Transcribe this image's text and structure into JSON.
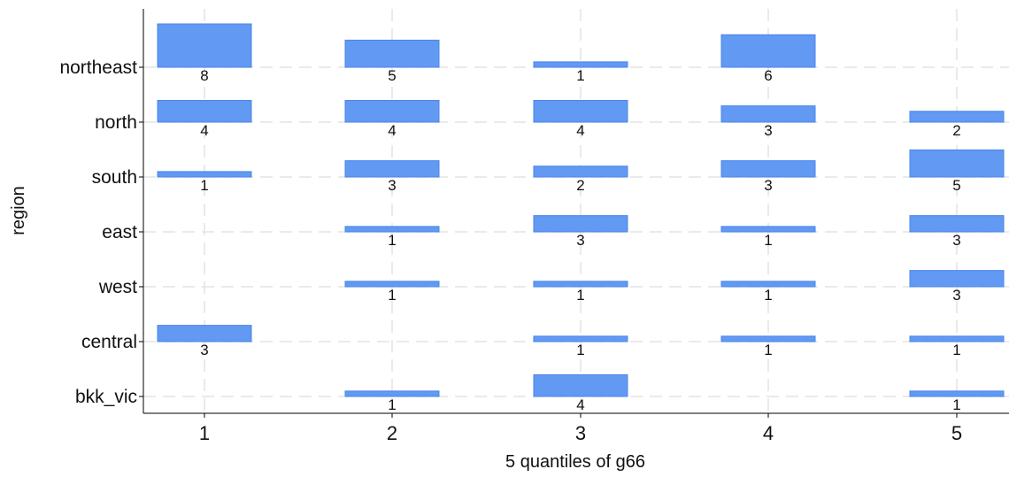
{
  "chart_data": {
    "type": "bar",
    "xlabel": "5 quantiles of g66",
    "ylabel": "region",
    "x_categories": [
      "1",
      "2",
      "3",
      "4",
      "5"
    ],
    "y_categories": [
      "northeast",
      "north",
      "south",
      "east",
      "west",
      "central",
      "bkk_vic"
    ],
    "grid": true,
    "bar_color": "#6199f3",
    "bar_edge_color": "#4a86e8",
    "max_count": 8,
    "cells": [
      {
        "region": "northeast",
        "quantile": "1",
        "count": 8
      },
      {
        "region": "northeast",
        "quantile": "2",
        "count": 5
      },
      {
        "region": "northeast",
        "quantile": "3",
        "count": 1
      },
      {
        "region": "northeast",
        "quantile": "4",
        "count": 6
      },
      {
        "region": "north",
        "quantile": "1",
        "count": 4
      },
      {
        "region": "north",
        "quantile": "2",
        "count": 4
      },
      {
        "region": "north",
        "quantile": "3",
        "count": 4
      },
      {
        "region": "north",
        "quantile": "4",
        "count": 3
      },
      {
        "region": "north",
        "quantile": "5",
        "count": 2
      },
      {
        "region": "south",
        "quantile": "1",
        "count": 1
      },
      {
        "region": "south",
        "quantile": "2",
        "count": 3
      },
      {
        "region": "south",
        "quantile": "3",
        "count": 2
      },
      {
        "region": "south",
        "quantile": "4",
        "count": 3
      },
      {
        "region": "south",
        "quantile": "5",
        "count": 5
      },
      {
        "region": "east",
        "quantile": "2",
        "count": 1
      },
      {
        "region": "east",
        "quantile": "3",
        "count": 3
      },
      {
        "region": "east",
        "quantile": "4",
        "count": 1
      },
      {
        "region": "east",
        "quantile": "5",
        "count": 3
      },
      {
        "region": "west",
        "quantile": "2",
        "count": 1
      },
      {
        "region": "west",
        "quantile": "3",
        "count": 1
      },
      {
        "region": "west",
        "quantile": "4",
        "count": 1
      },
      {
        "region": "west",
        "quantile": "5",
        "count": 3
      },
      {
        "region": "central",
        "quantile": "1",
        "count": 3
      },
      {
        "region": "central",
        "quantile": "3",
        "count": 1
      },
      {
        "region": "central",
        "quantile": "4",
        "count": 1
      },
      {
        "region": "central",
        "quantile": "5",
        "count": 1
      },
      {
        "region": "bkk_vic",
        "quantile": "2",
        "count": 1
      },
      {
        "region": "bkk_vic",
        "quantile": "3",
        "count": 4
      },
      {
        "region": "bkk_vic",
        "quantile": "5",
        "count": 1
      }
    ]
  }
}
